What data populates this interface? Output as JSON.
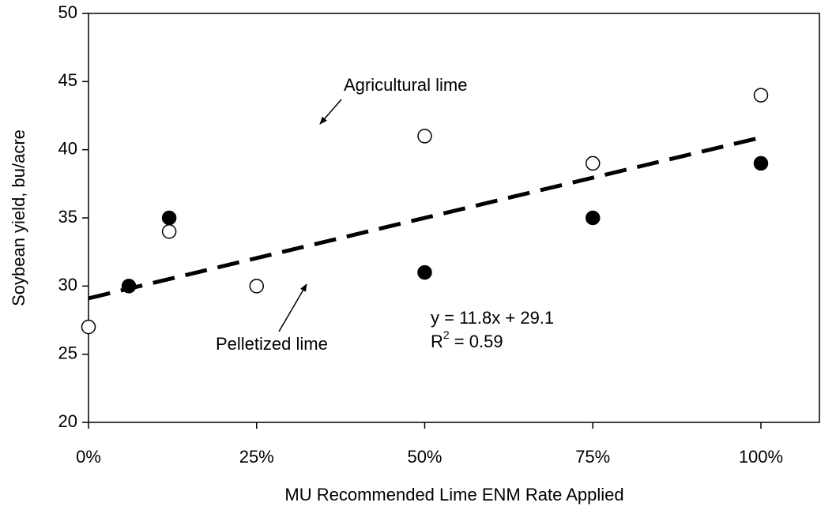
{
  "chart_data": {
    "type": "scatter",
    "x_label": "MU Recommended Lime ENM Rate Applied",
    "y_label": "Soybean yield, bu/acre",
    "xlim": [
      0,
      108.7
    ],
    "ylim": [
      20,
      50
    ],
    "xticks": [
      {
        "value": 0,
        "label": "0%"
      },
      {
        "value": 25,
        "label": "25%"
      },
      {
        "value": 50,
        "label": "50%"
      },
      {
        "value": 75,
        "label": "75%"
      },
      {
        "value": 100,
        "label": "100%"
      }
    ],
    "yticks": [
      20,
      25,
      30,
      35,
      40,
      45,
      50
    ],
    "series": [
      {
        "name": "Agricultural lime",
        "marker": "open",
        "color": "#000000",
        "x": [
          0,
          12,
          25,
          50,
          75,
          100
        ],
        "values": [
          27,
          34,
          30,
          41,
          39,
          44
        ]
      },
      {
        "name": "Pelletized lime",
        "marker": "filled",
        "color": "#000000",
        "x": [
          6,
          12,
          50,
          75,
          100
        ],
        "values": [
          30,
          35,
          31,
          35,
          39
        ]
      }
    ],
    "trendline": {
      "x": [
        0,
        100
      ],
      "values": [
        29.1,
        40.9
      ],
      "color": "#000000"
    },
    "equation": "y = 11.8x + 29.1",
    "r_squared": {
      "prefix": "R",
      "sup": "2",
      "suffix": " = 0.59"
    }
  }
}
